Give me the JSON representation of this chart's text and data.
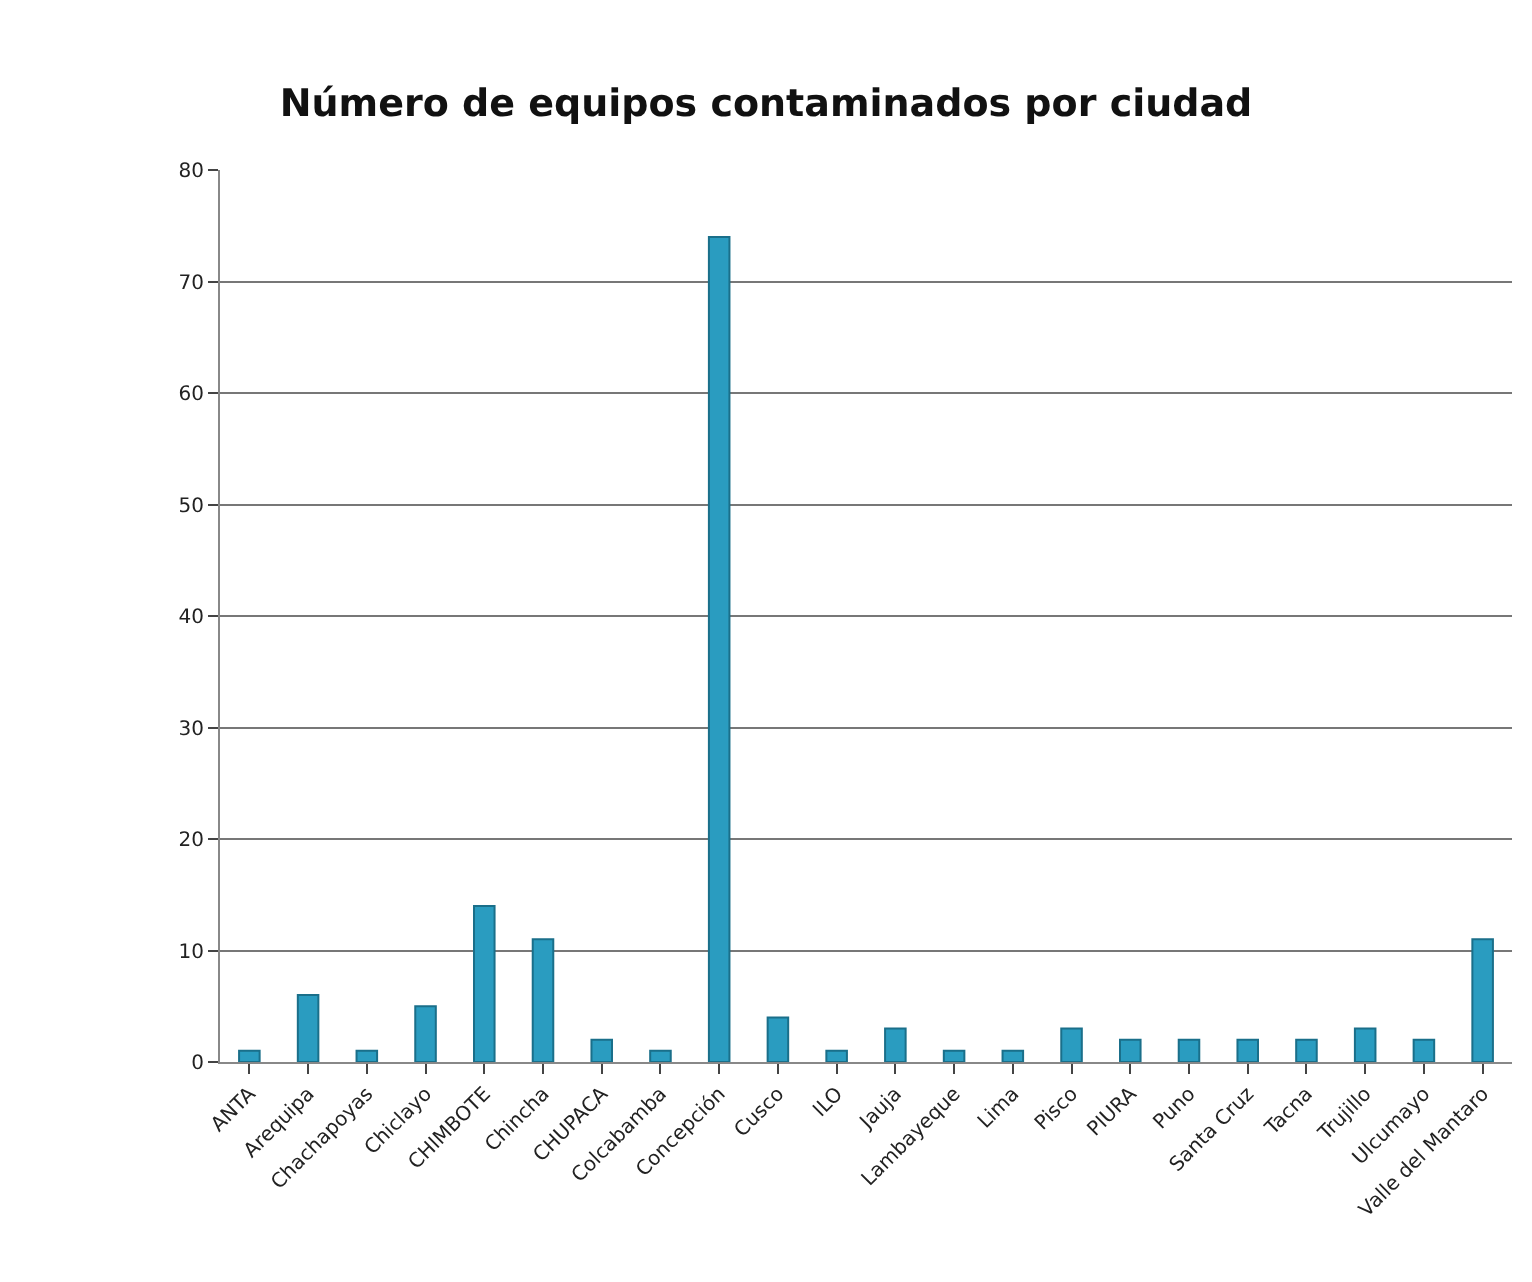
{
  "chart_data": {
    "type": "bar",
    "title": "Número de equipos contaminados por ciudad",
    "categories": [
      "ANTA",
      "Arequipa",
      "Chachapoyas",
      "Chiclayo",
      "CHIMBOTE",
      "Chincha",
      "CHUPACA",
      "Colcabamba",
      "Concepción",
      "Cusco",
      "ILO",
      "Jauja",
      "Lambayeque",
      "Lima",
      "Pisco",
      "PIURA",
      "Puno",
      "Santa Cruz",
      "Tacna",
      "Trujillo",
      "Ulcumayo",
      "Valle del Mantaro"
    ],
    "values": [
      1,
      6,
      1,
      5,
      14,
      11,
      2,
      1,
      74,
      4,
      1,
      3,
      1,
      1,
      3,
      2,
      2,
      2,
      2,
      3,
      2,
      11
    ],
    "color": "#2a9cc0",
    "ylim": [
      0,
      80
    ],
    "yticks": [
      0,
      10,
      20,
      30,
      40,
      50,
      60,
      70,
      80
    ],
    "grid": "y"
  }
}
